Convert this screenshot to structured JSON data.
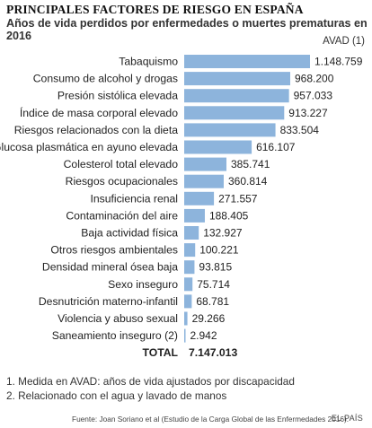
{
  "header": {
    "title": "PRINCIPALES FACTORES DE RIESGO EN ESPAÑA",
    "subtitle": "Años de vida perdidos por enfermedades o muertes prematuras en 2016",
    "unit": "AVAD (1)"
  },
  "chart_data": {
    "type": "bar",
    "orientation": "horizontal",
    "categories": [
      "Tabaquismo",
      "Consumo de alcohol y drogas",
      "Presión sistólica elevada",
      "Índice de masa corporal elevado",
      "Riesgos relacionados con la dieta",
      "Glucosa plasmática en ayuno elevada",
      "Colesterol total elevado",
      "Riesgos ocupacionales",
      "Insuficiencia renal",
      "Contaminación del aire",
      "Baja actividad física",
      "Otros riesgos ambientales",
      "Densidad mineral ósea baja",
      "Sexo inseguro",
      "Desnutrición materno-infantil",
      "Violencia y abuso sexual",
      "Saneamiento inseguro (2)"
    ],
    "values": [
      1148759,
      968200,
      957033,
      913227,
      833504,
      616107,
      385741,
      360814,
      271557,
      188405,
      132927,
      100221,
      93815,
      75714,
      68781,
      29266,
      2942
    ],
    "value_labels": [
      "1.148.759",
      "968.200",
      "957.033",
      "913.227",
      "833.504",
      "616.107",
      "385.741",
      "360.814",
      "271.557",
      "188.405",
      "132.927",
      "100.221",
      "93.815",
      "75.714",
      "68.781",
      "29.266",
      "2.942"
    ],
    "total_label": "TOTAL",
    "total_value": "7.147.013",
    "bar_color": "#8db4dc",
    "xlim": [
      0,
      1148759
    ],
    "grid": false,
    "legend": "none"
  },
  "footnotes": [
    "1. Medida en AVAD: años de vida ajustados por discapacidad",
    "2. Relacionado con el agua y lavado de manos"
  ],
  "source": "Fuente: Joan Soriano et al (Estudio de la Carga Global de las Enfermedades 2016).",
  "brand": "EL PAÍS"
}
